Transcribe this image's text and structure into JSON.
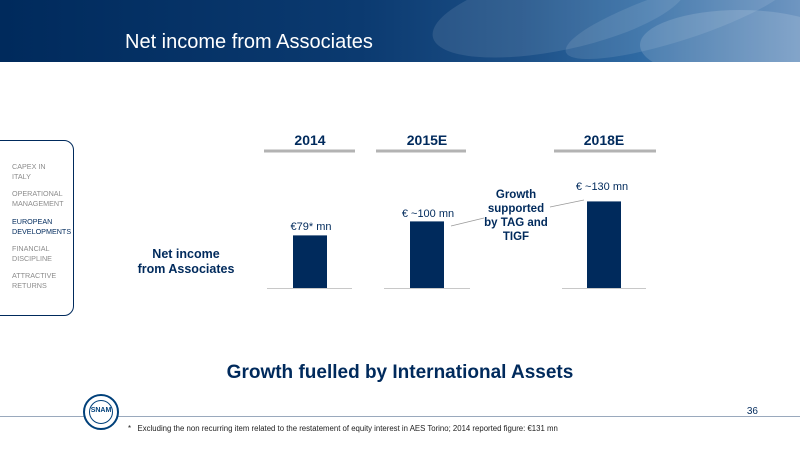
{
  "slide": {
    "title": "Net income from Associates",
    "subtitle": "Growth fuelled by International Assets",
    "page_number": "36",
    "footnote_marker": "*",
    "footnote": "Excluding the non recurring item related to the restatement of equity interest in  AES Torino; 2014 reported figure: €131 mn",
    "logo_text": "SNAM"
  },
  "nav": {
    "items": [
      {
        "label": "CAPEX IN ITALY",
        "active": false
      },
      {
        "label": "OPERATIONAL MANAGEMENT",
        "active": false
      },
      {
        "label": "EUROPEAN DEVELOPMENTS",
        "active": true
      },
      {
        "label": "FINANCIAL DISCIPLINE",
        "active": false
      },
      {
        "label": "ATTRACTIVE RETURNS",
        "active": false
      }
    ]
  },
  "chart_data": {
    "type": "bar",
    "categories": [
      "2014",
      "2015E",
      "2018E"
    ],
    "values": [
      79,
      100,
      130
    ],
    "data_labels": [
      "€79* mn",
      "€ ~100 mn",
      "€ ~130 mn"
    ],
    "row_label": "Net income from Associates",
    "annotation": "Growth supported by TAG and TIGF",
    "ylim": [
      0,
      140
    ],
    "grid": false,
    "bar_color": "#002a5c"
  }
}
